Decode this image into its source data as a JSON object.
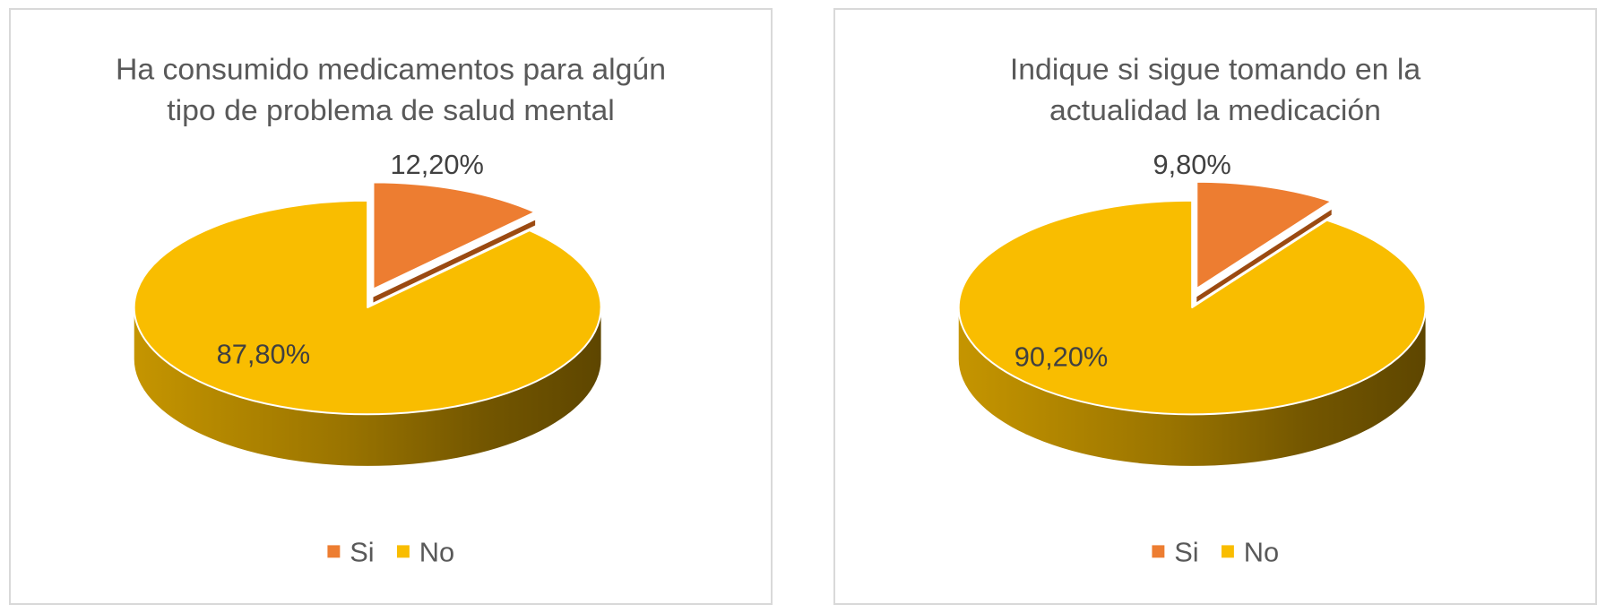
{
  "chart_data": [
    {
      "type": "pie",
      "title_lines": [
        "Ha consumido medicamentos para algún",
        "tipo de problema de salud mental"
      ],
      "slices": [
        {
          "name": "Si",
          "value": 12.2,
          "label": "12,20%",
          "color": "#ED7D31",
          "exploded": true
        },
        {
          "name": "No",
          "value": 87.8,
          "label": "87,80%",
          "color": "#F9BD00",
          "exploded": false
        }
      ],
      "legend": {
        "position": "bottom",
        "entries": [
          "Si",
          "No"
        ]
      },
      "style": "3d"
    },
    {
      "type": "pie",
      "title_lines": [
        "Indique si sigue tomando en la",
        "actualidad la medicación"
      ],
      "slices": [
        {
          "name": "Si",
          "value": 9.8,
          "label": "9,80%",
          "color": "#ED7D31",
          "exploded": true
        },
        {
          "name": "No",
          "value": 90.2,
          "label": "90,20%",
          "color": "#F9BD00",
          "exploded": false
        }
      ],
      "legend": {
        "position": "bottom",
        "entries": [
          "Si",
          "No"
        ]
      },
      "style": "3d"
    }
  ]
}
